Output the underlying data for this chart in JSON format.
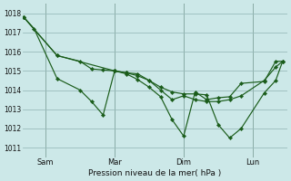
{
  "background_color": "#cce8e8",
  "grid_color": "#99bbbb",
  "line_color": "#1a5c1a",
  "xlabel": "Pression niveau de la mer( hPa )",
  "ylim": [
    1010.5,
    1018.5
  ],
  "yticks": [
    1011,
    1012,
    1013,
    1014,
    1015,
    1016,
    1017,
    1018
  ],
  "xtick_labels": [
    "Sam",
    "Mar",
    "Dim",
    "Lun"
  ],
  "xtick_positions": [
    1,
    4,
    7,
    10
  ],
  "xlim": [
    0,
    11.5
  ],
  "series1_x": [
    0.05,
    0.5,
    1.5,
    2.5,
    3.0,
    3.5,
    4.0,
    4.5,
    5.0,
    5.5,
    6.0,
    6.5,
    7.0,
    7.5,
    8.0,
    8.5,
    9.0,
    9.5,
    10.5,
    11.0,
    11.3
  ],
  "series1_y": [
    1017.8,
    1017.2,
    1014.6,
    1014.0,
    1013.4,
    1012.7,
    1015.0,
    1014.85,
    1014.55,
    1014.15,
    1013.65,
    1012.45,
    1011.6,
    1013.9,
    1013.5,
    1013.6,
    1013.65,
    1014.35,
    1014.45,
    1015.5,
    1015.5
  ],
  "series2_x": [
    0.05,
    1.5,
    4.0,
    4.5,
    5.0,
    5.5,
    6.0,
    6.5,
    7.0,
    7.5,
    8.0,
    8.5,
    9.0,
    9.5,
    10.5,
    11.0,
    11.3
  ],
  "series2_y": [
    1017.8,
    1015.8,
    1015.0,
    1014.9,
    1014.85,
    1014.5,
    1014.0,
    1013.5,
    1013.7,
    1013.5,
    1013.4,
    1013.4,
    1013.5,
    1013.7,
    1014.5,
    1015.2,
    1015.5
  ],
  "series3_x": [
    0.05,
    1.5,
    2.5,
    3.0,
    3.5,
    4.0,
    4.5,
    5.0,
    5.5,
    6.0,
    6.5,
    7.0,
    7.5,
    8.0,
    8.5,
    9.0,
    9.5,
    10.5,
    11.0,
    11.3
  ],
  "series3_y": [
    1017.8,
    1015.8,
    1015.5,
    1015.1,
    1015.05,
    1015.0,
    1014.9,
    1014.75,
    1014.5,
    1014.15,
    1013.9,
    1013.8,
    1013.8,
    1013.75,
    1012.2,
    1011.5,
    1012.0,
    1013.85,
    1014.5,
    1015.5
  ]
}
